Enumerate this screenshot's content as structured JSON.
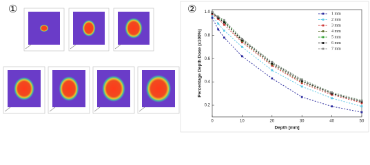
{
  "panel_labels": [
    "①",
    "②"
  ],
  "chart_data": {
    "type": "line",
    "xlabel": "Depth [mm]",
    "ylabel": "Percentage Depth Dose (x100%)",
    "x": [
      0,
      2,
      4,
      10,
      20,
      30,
      40,
      50
    ],
    "series": [
      {
        "name": "1 mm",
        "color": "#2b2b9e",
        "values": [
          0.95,
          0.85,
          0.78,
          0.62,
          0.43,
          0.27,
          0.19,
          0.14
        ]
      },
      {
        "name": "2 mm",
        "color": "#5cc8e6",
        "values": [
          0.97,
          0.9,
          0.84,
          0.7,
          0.5,
          0.36,
          0.26,
          0.19
        ]
      },
      {
        "name": "3 mm",
        "color": "#cc3333",
        "values": [
          0.98,
          0.94,
          0.89,
          0.74,
          0.54,
          0.39,
          0.29,
          0.22
        ]
      },
      {
        "name": "4 mm",
        "color": "#5a6b2a",
        "values": [
          0.99,
          0.95,
          0.91,
          0.75,
          0.55,
          0.4,
          0.3,
          0.23
        ]
      },
      {
        "name": "5 mm",
        "color": "#2ea02e",
        "values": [
          1.0,
          0.96,
          0.92,
          0.77,
          0.57,
          0.42,
          0.31,
          0.24
        ]
      },
      {
        "name": "6 mm",
        "color": "#111111",
        "values": [
          0.99,
          0.95,
          0.91,
          0.76,
          0.56,
          0.41,
          0.3,
          0.23
        ]
      },
      {
        "name": "7 mm",
        "color": "#8a8a8a",
        "values": [
          1.0,
          0.96,
          0.93,
          0.77,
          0.57,
          0.42,
          0.31,
          0.24
        ]
      }
    ],
    "xlim": [
      0,
      50
    ],
    "xticks": [
      0,
      10,
      20,
      30,
      40,
      50
    ],
    "ylim": [
      0.1,
      1.02
    ],
    "yticks": [
      0.2,
      0.4,
      0.6,
      0.8,
      {
        "value": 1,
        "label": "1.0"
      }
    ],
    "legend": "upper right"
  }
}
